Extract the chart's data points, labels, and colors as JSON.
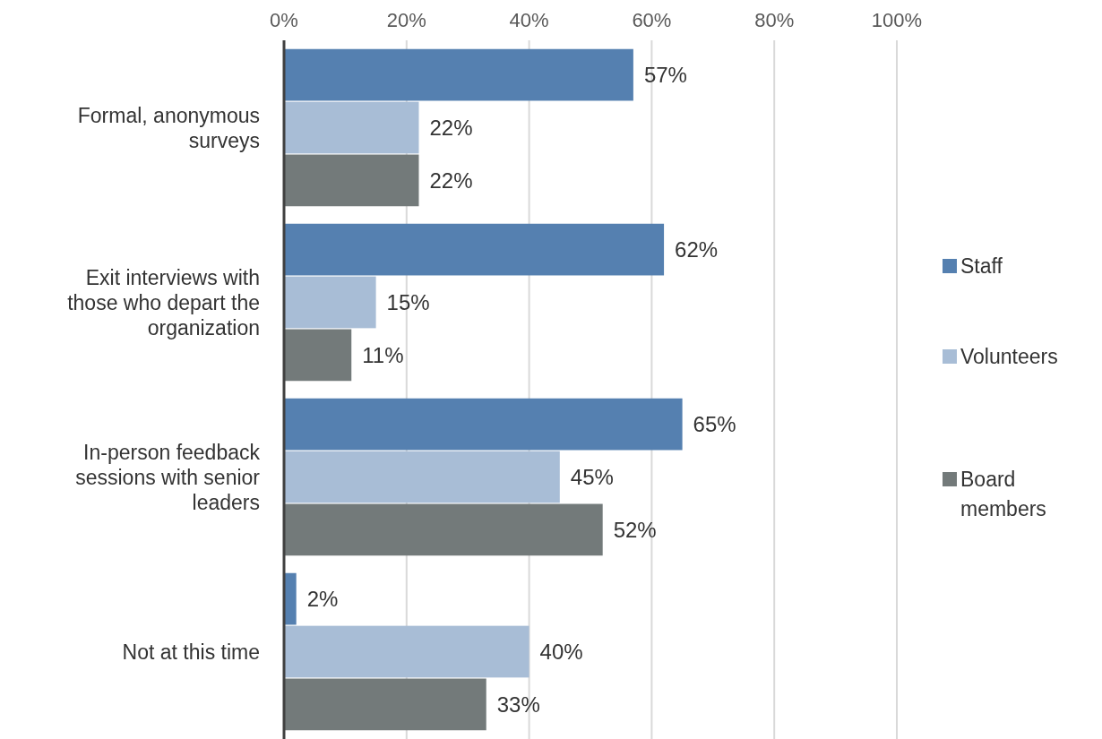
{
  "chart_data": {
    "type": "bar",
    "orientation": "horizontal",
    "categories": [
      "Formal, anonymous surveys",
      "Exit interviews with those who depart the organization",
      "In-person feedback sessions with senior leaders",
      "Not at this time"
    ],
    "series": [
      {
        "name": "Staff",
        "color": "#5580b0",
        "values": [
          57,
          62,
          65,
          2
        ],
        "value_labels": [
          "57%",
          "62%",
          "65%",
          "2%"
        ]
      },
      {
        "name": "Volunteers",
        "color": "#a8bdd6",
        "values": [
          22,
          15,
          45,
          40
        ],
        "value_labels": [
          "22%",
          "15%",
          "45%",
          "40%"
        ]
      },
      {
        "name": "Board members",
        "color": "#737a7a",
        "values": [
          22,
          11,
          52,
          33
        ],
        "value_labels": [
          "22%",
          "11%",
          "52%",
          "33%"
        ]
      }
    ],
    "xlim": [
      0,
      100
    ],
    "xticks": [
      {
        "value": 0,
        "label": "0%"
      },
      {
        "value": 20,
        "label": "20%"
      },
      {
        "value": 40,
        "label": "40%"
      },
      {
        "value": 60,
        "label": "60%"
      },
      {
        "value": 80,
        "label": "80%"
      },
      {
        "value": 100,
        "label": "100%"
      }
    ],
    "grid": "x",
    "legend": "right"
  }
}
